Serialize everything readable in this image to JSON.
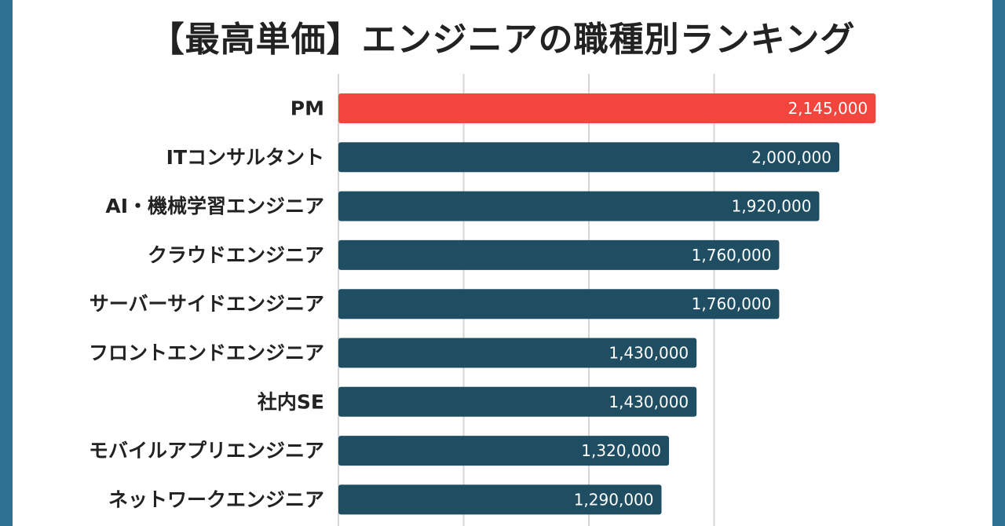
{
  "chart_data": {
    "type": "bar",
    "orientation": "horizontal",
    "title": "【最高単価】エンジニアの職種別ランキング",
    "categories": [
      "PM",
      "ITコンサルタント",
      "AI・機械学習エンジニア",
      "クラウドエンジニア",
      "サーバーサイドエンジニア",
      "フロントエンドエンジニア",
      "社内SE",
      "モバイルアプリエンジニア",
      "ネットワークエンジニア"
    ],
    "values": [
      2145000,
      2000000,
      1920000,
      1760000,
      1760000,
      1430000,
      1430000,
      1320000,
      1290000
    ],
    "value_labels": [
      "2,145,000",
      "2,000,000",
      "1,920,000",
      "1,760,000",
      "1,760,000",
      "1,430,000",
      "1,430,000",
      "1,320,000",
      "1,290,000"
    ],
    "xlim": [
      0,
      2500000
    ],
    "grid": true,
    "gridlines_x": [
      0,
      500000,
      1000000,
      1500000
    ],
    "colors": {
      "highlight": "#f2453d",
      "default": "#1f4e63",
      "grid": "#d6d6d6",
      "frame": "#2e6f92"
    },
    "highlight_index": 0
  }
}
